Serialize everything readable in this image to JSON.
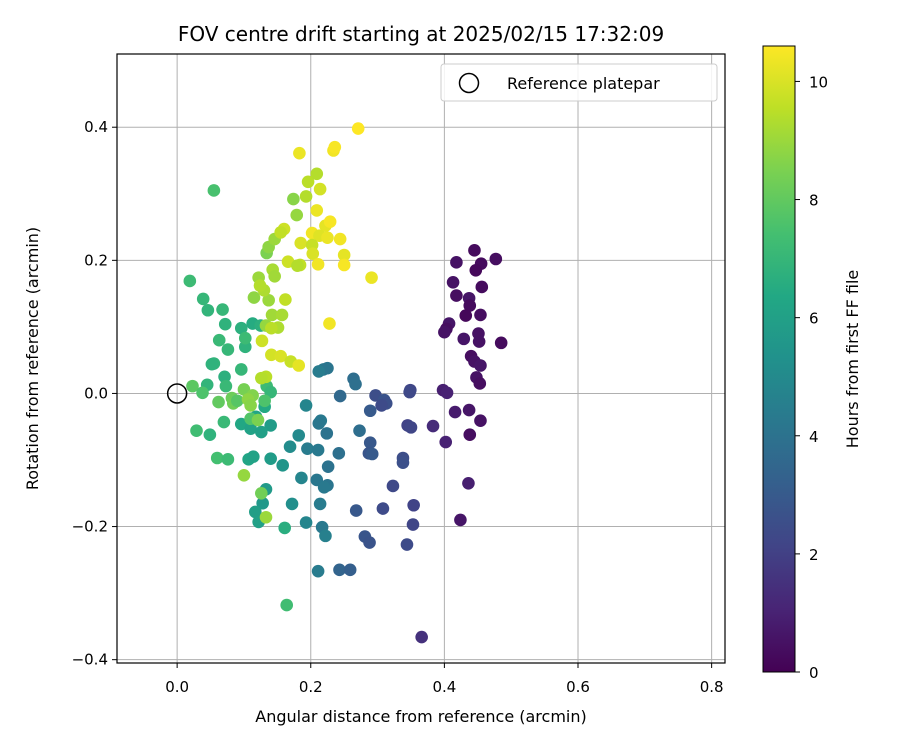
{
  "chart_data": {
    "type": "scatter",
    "title": "FOV centre drift starting at 2025/02/15 17:32:09",
    "xlabel": "Angular distance from reference (arcmin)",
    "ylabel": "Rotation from reference (arcmin)",
    "xlim": [
      -0.09,
      0.82
    ],
    "ylim": [
      -0.405,
      0.51
    ],
    "x_ticks": [
      0.0,
      0.2,
      0.4,
      0.6,
      0.8
    ],
    "x_tick_labels": [
      "0.0",
      "0.2",
      "0.4",
      "0.6",
      "0.8"
    ],
    "y_ticks": [
      -0.4,
      -0.2,
      0.0,
      0.2,
      0.4
    ],
    "y_tick_labels": [
      "−0.4",
      "−0.2",
      "0.0",
      "0.2",
      "0.4"
    ],
    "grid": true,
    "colormap": "viridis",
    "colorbar": {
      "label": "Hours from first FF file",
      "range": [
        0,
        10.6
      ],
      "ticks": [
        0,
        2,
        4,
        6,
        8,
        10
      ],
      "tick_labels": [
        "0",
        "2",
        "4",
        "6",
        "8",
        "10"
      ]
    },
    "legend": {
      "position": "top-right",
      "entries": [
        "Reference platepar"
      ]
    },
    "reference_point": {
      "x": 0.0,
      "y": 0.0
    },
    "points": [
      {
        "x": 0.445,
        "y": 0.215,
        "h": 0.3
      },
      {
        "x": 0.477,
        "y": 0.202,
        "h": 0.4
      },
      {
        "x": 0.418,
        "y": 0.197,
        "h": 0.5
      },
      {
        "x": 0.455,
        "y": 0.195,
        "h": 0.3
      },
      {
        "x": 0.447,
        "y": 0.185,
        "h": 0.2
      },
      {
        "x": 0.413,
        "y": 0.167,
        "h": 0.5
      },
      {
        "x": 0.456,
        "y": 0.16,
        "h": 0.3
      },
      {
        "x": 0.418,
        "y": 0.147,
        "h": 0.4
      },
      {
        "x": 0.437,
        "y": 0.143,
        "h": 0.6
      },
      {
        "x": 0.438,
        "y": 0.132,
        "h": 0.3
      },
      {
        "x": 0.454,
        "y": 0.118,
        "h": 0.4
      },
      {
        "x": 0.432,
        "y": 0.117,
        "h": 0.2
      },
      {
        "x": 0.407,
        "y": 0.105,
        "h": 0.6
      },
      {
        "x": 0.403,
        "y": 0.097,
        "h": 0.4
      },
      {
        "x": 0.451,
        "y": 0.09,
        "h": 0.5
      },
      {
        "x": 0.4,
        "y": 0.092,
        "h": 0.5
      },
      {
        "x": 0.429,
        "y": 0.082,
        "h": 0.6
      },
      {
        "x": 0.452,
        "y": 0.078,
        "h": 0.5
      },
      {
        "x": 0.485,
        "y": 0.076,
        "h": 0.3
      },
      {
        "x": 0.44,
        "y": 0.056,
        "h": 0.4
      },
      {
        "x": 0.445,
        "y": 0.048,
        "h": 0.5
      },
      {
        "x": 0.454,
        "y": 0.042,
        "h": 0.6
      },
      {
        "x": 0.448,
        "y": 0.024,
        "h": 0.5
      },
      {
        "x": 0.453,
        "y": 0.015,
        "h": 0.4
      },
      {
        "x": 0.398,
        "y": 0.005,
        "h": 0.9
      },
      {
        "x": 0.404,
        "y": 0.001,
        "h": 1.0
      },
      {
        "x": 0.437,
        "y": -0.025,
        "h": 0.6
      },
      {
        "x": 0.416,
        "y": -0.028,
        "h": 0.8
      },
      {
        "x": 0.454,
        "y": -0.041,
        "h": 0.5
      },
      {
        "x": 0.383,
        "y": -0.049,
        "h": 1.3
      },
      {
        "x": 0.438,
        "y": -0.062,
        "h": 0.4
      },
      {
        "x": 0.402,
        "y": -0.073,
        "h": 1.0
      },
      {
        "x": 0.436,
        "y": -0.135,
        "h": 0.9
      },
      {
        "x": 0.424,
        "y": -0.19,
        "h": 0.6
      },
      {
        "x": 0.366,
        "y": -0.366,
        "h": 1.5
      },
      {
        "x": 0.349,
        "y": 0.005,
        "h": 2.2
      },
      {
        "x": 0.348,
        "y": 0.002,
        "h": 2.3
      },
      {
        "x": 0.297,
        "y": -0.003,
        "h": 2.5
      },
      {
        "x": 0.31,
        "y": -0.01,
        "h": 2.7
      },
      {
        "x": 0.313,
        "y": -0.015,
        "h": 2.6
      },
      {
        "x": 0.306,
        "y": -0.018,
        "h": 2.4
      },
      {
        "x": 0.289,
        "y": -0.026,
        "h": 3.0
      },
      {
        "x": 0.345,
        "y": -0.048,
        "h": 2.1
      },
      {
        "x": 0.35,
        "y": -0.051,
        "h": 2.2
      },
      {
        "x": 0.289,
        "y": -0.074,
        "h": 2.9
      },
      {
        "x": 0.287,
        "y": -0.09,
        "h": 2.8
      },
      {
        "x": 0.292,
        "y": -0.091,
        "h": 3.0
      },
      {
        "x": 0.338,
        "y": -0.097,
        "h": 2.5
      },
      {
        "x": 0.338,
        "y": -0.104,
        "h": 2.6
      },
      {
        "x": 0.323,
        "y": -0.139,
        "h": 2.3
      },
      {
        "x": 0.354,
        "y": -0.168,
        "h": 2.1
      },
      {
        "x": 0.308,
        "y": -0.173,
        "h": 2.4
      },
      {
        "x": 0.268,
        "y": -0.176,
        "h": 2.9
      },
      {
        "x": 0.353,
        "y": -0.197,
        "h": 2.2
      },
      {
        "x": 0.281,
        "y": -0.215,
        "h": 2.8
      },
      {
        "x": 0.288,
        "y": -0.224,
        "h": 2.7
      },
      {
        "x": 0.344,
        "y": -0.227,
        "h": 2.4
      },
      {
        "x": 0.243,
        "y": -0.265,
        "h": 3.4
      },
      {
        "x": 0.259,
        "y": -0.265,
        "h": 3.2
      },
      {
        "x": 0.219,
        "y": 0.036,
        "h": 4.2
      },
      {
        "x": 0.225,
        "y": 0.038,
        "h": 4.1
      },
      {
        "x": 0.212,
        "y": 0.033,
        "h": 4.4
      },
      {
        "x": 0.264,
        "y": 0.022,
        "h": 3.8
      },
      {
        "x": 0.267,
        "y": 0.014,
        "h": 3.9
      },
      {
        "x": 0.244,
        "y": -0.004,
        "h": 3.6
      },
      {
        "x": 0.193,
        "y": -0.018,
        "h": 4.8
      },
      {
        "x": 0.215,
        "y": -0.041,
        "h": 4.3
      },
      {
        "x": 0.212,
        "y": -0.045,
        "h": 4.2
      },
      {
        "x": 0.273,
        "y": -0.056,
        "h": 3.8
      },
      {
        "x": 0.224,
        "y": -0.06,
        "h": 4.0
      },
      {
        "x": 0.182,
        "y": -0.063,
        "h": 5.0
      },
      {
        "x": 0.242,
        "y": -0.09,
        "h": 3.9
      },
      {
        "x": 0.195,
        "y": -0.083,
        "h": 4.4
      },
      {
        "x": 0.211,
        "y": -0.085,
        "h": 4.3
      },
      {
        "x": 0.169,
        "y": -0.08,
        "h": 5.1
      },
      {
        "x": 0.14,
        "y": -0.098,
        "h": 5.8
      },
      {
        "x": 0.158,
        "y": -0.108,
        "h": 5.5
      },
      {
        "x": 0.226,
        "y": -0.11,
        "h": 4.0
      },
      {
        "x": 0.209,
        "y": -0.13,
        "h": 4.2
      },
      {
        "x": 0.186,
        "y": -0.127,
        "h": 4.8
      },
      {
        "x": 0.225,
        "y": -0.138,
        "h": 4.1
      },
      {
        "x": 0.22,
        "y": -0.141,
        "h": 4.3
      },
      {
        "x": 0.133,
        "y": -0.144,
        "h": 5.7
      },
      {
        "x": 0.214,
        "y": -0.166,
        "h": 4.4
      },
      {
        "x": 0.172,
        "y": -0.166,
        "h": 5.2
      },
      {
        "x": 0.128,
        "y": -0.165,
        "h": 5.6
      },
      {
        "x": 0.117,
        "y": -0.178,
        "h": 5.9
      },
      {
        "x": 0.193,
        "y": -0.194,
        "h": 4.8
      },
      {
        "x": 0.217,
        "y": -0.201,
        "h": 4.3
      },
      {
        "x": 0.222,
        "y": -0.214,
        "h": 4.6
      },
      {
        "x": 0.122,
        "y": -0.193,
        "h": 6.0
      },
      {
        "x": 0.211,
        "y": -0.267,
        "h": 4.4
      },
      {
        "x": 0.14,
        "y": -0.048,
        "h": 5.8
      },
      {
        "x": 0.107,
        "y": -0.099,
        "h": 6.2
      },
      {
        "x": 0.114,
        "y": -0.095,
        "h": 6.1
      },
      {
        "x": 0.096,
        "y": -0.046,
        "h": 6.3
      },
      {
        "x": 0.11,
        "y": -0.053,
        "h": 6.1
      },
      {
        "x": 0.126,
        "y": -0.058,
        "h": 6.0
      },
      {
        "x": 0.118,
        "y": -0.035,
        "h": 6.2
      },
      {
        "x": 0.131,
        "y": -0.02,
        "h": 6.4
      },
      {
        "x": 0.161,
        "y": -0.202,
        "h": 6.6
      },
      {
        "x": 0.164,
        "y": -0.318,
        "h": 7.3
      },
      {
        "x": 0.055,
        "y": 0.305,
        "h": 7.5
      },
      {
        "x": 0.019,
        "y": 0.169,
        "h": 7.2
      },
      {
        "x": 0.039,
        "y": 0.142,
        "h": 7.0
      },
      {
        "x": 0.046,
        "y": 0.125,
        "h": 6.9
      },
      {
        "x": 0.068,
        "y": 0.126,
        "h": 7.0
      },
      {
        "x": 0.072,
        "y": 0.104,
        "h": 6.8
      },
      {
        "x": 0.096,
        "y": 0.098,
        "h": 6.7
      },
      {
        "x": 0.113,
        "y": 0.105,
        "h": 6.5
      },
      {
        "x": 0.125,
        "y": 0.102,
        "h": 6.7
      },
      {
        "x": 0.063,
        "y": 0.08,
        "h": 7.1
      },
      {
        "x": 0.076,
        "y": 0.066,
        "h": 7.0
      },
      {
        "x": 0.102,
        "y": 0.07,
        "h": 6.8
      },
      {
        "x": 0.102,
        "y": 0.083,
        "h": 7.2
      },
      {
        "x": 0.055,
        "y": 0.045,
        "h": 6.9
      },
      {
        "x": 0.052,
        "y": 0.044,
        "h": 6.8
      },
      {
        "x": 0.096,
        "y": 0.036,
        "h": 7.0
      },
      {
        "x": 0.071,
        "y": 0.025,
        "h": 6.7
      },
      {
        "x": 0.045,
        "y": 0.013,
        "h": 6.9
      },
      {
        "x": 0.073,
        "y": 0.011,
        "h": 7.1
      },
      {
        "x": 0.134,
        "y": 0.011,
        "h": 7.2
      },
      {
        "x": 0.14,
        "y": 0.002,
        "h": 7.0
      },
      {
        "x": 0.082,
        "y": -0.007,
        "h": 8.2
      },
      {
        "x": 0.062,
        "y": -0.013,
        "h": 8.0
      },
      {
        "x": 0.084,
        "y": -0.015,
        "h": 8.3
      },
      {
        "x": 0.09,
        "y": -0.011,
        "h": 7.8
      },
      {
        "x": 0.131,
        "y": -0.011,
        "h": 7.6
      },
      {
        "x": 0.07,
        "y": -0.043,
        "h": 7.1
      },
      {
        "x": 0.049,
        "y": -0.062,
        "h": 6.8
      },
      {
        "x": 0.029,
        "y": -0.056,
        "h": 7.3
      },
      {
        "x": 0.06,
        "y": -0.097,
        "h": 7.4
      },
      {
        "x": 0.076,
        "y": -0.099,
        "h": 7.2
      },
      {
        "x": 0.11,
        "y": -0.038,
        "h": 7.7
      },
      {
        "x": 0.121,
        "y": -0.04,
        "h": 8.5
      },
      {
        "x": 0.023,
        "y": 0.011,
        "h": 7.9
      },
      {
        "x": 0.038,
        "y": 0.001,
        "h": 7.6
      },
      {
        "x": 0.1,
        "y": 0.006,
        "h": 8.4
      },
      {
        "x": 0.113,
        "y": -0.003,
        "h": 8.6
      },
      {
        "x": 0.106,
        "y": -0.009,
        "h": 8.8
      },
      {
        "x": 0.11,
        "y": -0.018,
        "h": 8.7
      },
      {
        "x": 0.1,
        "y": -0.123,
        "h": 8.9
      },
      {
        "x": 0.126,
        "y": -0.15,
        "h": 8.3
      },
      {
        "x": 0.133,
        "y": -0.186,
        "h": 9.0
      },
      {
        "x": 0.133,
        "y": 0.025,
        "h": 9.5
      },
      {
        "x": 0.126,
        "y": 0.023,
        "h": 9.4
      },
      {
        "x": 0.133,
        "y": 0.102,
        "h": 8.9
      },
      {
        "x": 0.142,
        "y": 0.118,
        "h": 9.1
      },
      {
        "x": 0.157,
        "y": 0.118,
        "h": 9.2
      },
      {
        "x": 0.137,
        "y": 0.14,
        "h": 9.0
      },
      {
        "x": 0.115,
        "y": 0.144,
        "h": 8.8
      },
      {
        "x": 0.122,
        "y": 0.174,
        "h": 9.0
      },
      {
        "x": 0.143,
        "y": 0.186,
        "h": 9.2
      },
      {
        "x": 0.146,
        "y": 0.176,
        "h": 9.1
      },
      {
        "x": 0.134,
        "y": 0.211,
        "h": 8.5
      },
      {
        "x": 0.137,
        "y": 0.22,
        "h": 8.8
      },
      {
        "x": 0.146,
        "y": 0.232,
        "h": 9.0
      },
      {
        "x": 0.162,
        "y": 0.141,
        "h": 9.6
      },
      {
        "x": 0.13,
        "y": 0.155,
        "h": 9.3
      },
      {
        "x": 0.124,
        "y": 0.162,
        "h": 9.4
      },
      {
        "x": 0.151,
        "y": 0.099,
        "h": 9.3
      },
      {
        "x": 0.141,
        "y": 0.098,
        "h": 9.5
      },
      {
        "x": 0.127,
        "y": 0.079,
        "h": 9.8
      },
      {
        "x": 0.141,
        "y": 0.058,
        "h": 9.9
      },
      {
        "x": 0.155,
        "y": 0.056,
        "h": 10.0
      },
      {
        "x": 0.17,
        "y": 0.048,
        "h": 9.7
      },
      {
        "x": 0.182,
        "y": 0.042,
        "h": 10.2
      },
      {
        "x": 0.166,
        "y": 0.198,
        "h": 9.8
      },
      {
        "x": 0.184,
        "y": 0.193,
        "h": 9.6
      },
      {
        "x": 0.18,
        "y": 0.192,
        "h": 9.4
      },
      {
        "x": 0.179,
        "y": 0.268,
        "h": 8.9
      },
      {
        "x": 0.174,
        "y": 0.292,
        "h": 8.7
      },
      {
        "x": 0.193,
        "y": 0.296,
        "h": 9.4
      },
      {
        "x": 0.196,
        "y": 0.318,
        "h": 9.5
      },
      {
        "x": 0.209,
        "y": 0.33,
        "h": 9.4
      },
      {
        "x": 0.214,
        "y": 0.307,
        "h": 9.9
      },
      {
        "x": 0.183,
        "y": 0.361,
        "h": 10.3
      },
      {
        "x": 0.234,
        "y": 0.365,
        "h": 10.4
      },
      {
        "x": 0.236,
        "y": 0.37,
        "h": 10.5
      },
      {
        "x": 0.271,
        "y": 0.398,
        "h": 10.6
      },
      {
        "x": 0.209,
        "y": 0.275,
        "h": 10.3
      },
      {
        "x": 0.222,
        "y": 0.252,
        "h": 10.2
      },
      {
        "x": 0.229,
        "y": 0.258,
        "h": 10.5
      },
      {
        "x": 0.202,
        "y": 0.241,
        "h": 10.4
      },
      {
        "x": 0.213,
        "y": 0.237,
        "h": 10.1
      },
      {
        "x": 0.16,
        "y": 0.247,
        "h": 9.8
      },
      {
        "x": 0.155,
        "y": 0.242,
        "h": 9.6
      },
      {
        "x": 0.185,
        "y": 0.226,
        "h": 10.0
      },
      {
        "x": 0.202,
        "y": 0.223,
        "h": 9.7
      },
      {
        "x": 0.225,
        "y": 0.234,
        "h": 10.3
      },
      {
        "x": 0.244,
        "y": 0.232,
        "h": 10.4
      },
      {
        "x": 0.25,
        "y": 0.208,
        "h": 10.2
      },
      {
        "x": 0.203,
        "y": 0.21,
        "h": 10.0
      },
      {
        "x": 0.211,
        "y": 0.194,
        "h": 10.4
      },
      {
        "x": 0.25,
        "y": 0.193,
        "h": 10.5
      },
      {
        "x": 0.291,
        "y": 0.174,
        "h": 10.3
      },
      {
        "x": 0.228,
        "y": 0.105,
        "h": 10.4
      }
    ]
  }
}
